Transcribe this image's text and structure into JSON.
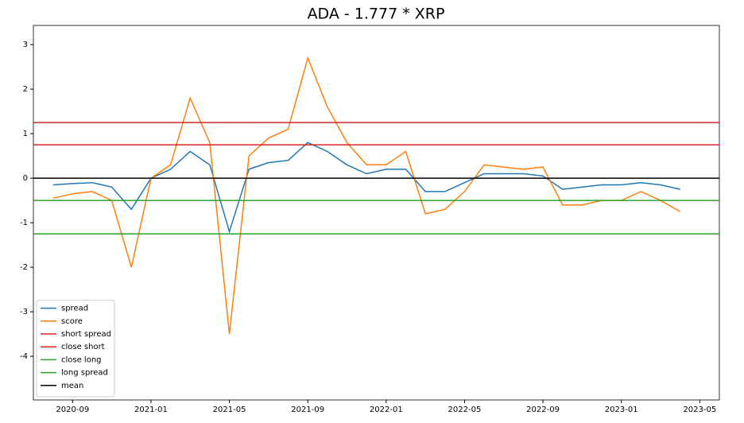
{
  "chart_data": {
    "type": "line",
    "title": "ADA - 1.777 * XRP",
    "x": [
      "2020-08",
      "2020-09",
      "2020-10",
      "2020-11",
      "2020-12",
      "2021-01",
      "2021-02",
      "2021-03",
      "2021-04",
      "2021-05",
      "2021-06",
      "2021-07",
      "2021-08",
      "2021-09",
      "2021-10",
      "2021-11",
      "2021-12",
      "2022-01",
      "2022-02",
      "2022-03",
      "2022-04",
      "2022-05",
      "2022-06",
      "2022-07",
      "2022-08",
      "2022-09",
      "2022-10",
      "2022-11",
      "2022-12",
      "2023-01",
      "2023-02",
      "2023-03",
      "2023-04"
    ],
    "series": [
      {
        "name": "spread",
        "color": "#1f77b4",
        "values": [
          -0.15,
          -0.12,
          -0.1,
          -0.2,
          -0.7,
          0.0,
          0.2,
          0.6,
          0.3,
          -1.2,
          0.2,
          0.35,
          0.4,
          0.8,
          0.6,
          0.3,
          0.1,
          0.2,
          0.2,
          -0.3,
          -0.3,
          -0.1,
          0.1,
          0.1,
          0.1,
          0.05,
          -0.25,
          -0.2,
          -0.15,
          -0.15,
          -0.1,
          -0.15,
          -0.25
        ]
      },
      {
        "name": "score",
        "color": "#ff7f0e",
        "values": [
          -0.45,
          -0.35,
          -0.3,
          -0.5,
          -2.0,
          0.0,
          0.3,
          1.8,
          0.8,
          -3.5,
          0.5,
          0.9,
          1.1,
          2.7,
          1.6,
          0.8,
          0.3,
          0.3,
          0.6,
          -0.8,
          -0.7,
          -0.3,
          0.3,
          0.25,
          0.2,
          0.25,
          -0.6,
          -0.6,
          -0.5,
          -0.5,
          -0.3,
          -0.5,
          -0.75
        ]
      }
    ],
    "hlines": [
      {
        "name": "short spread",
        "color": "#d62728",
        "value": 1.25
      },
      {
        "name": "close short",
        "color": "#d62728",
        "value": 0.75
      },
      {
        "name": "close long",
        "color": "#2ca02c",
        "value": -0.5
      },
      {
        "name": "long spread",
        "color": "#2ca02c",
        "value": -1.25
      },
      {
        "name": "mean",
        "color": "#000000",
        "value": 0
      }
    ],
    "xlim": [
      "2020-07",
      "2023-06"
    ],
    "xticks": [
      "2020-09",
      "2021-01",
      "2021-05",
      "2021-09",
      "2022-01",
      "2022-05",
      "2022-09",
      "2023-01",
      "2023-05"
    ],
    "ylim": [
      -4.98,
      3.43
    ],
    "yticks": [
      -4,
      -3,
      -2,
      -1,
      0,
      1,
      2,
      3
    ],
    "legend": "lower left"
  }
}
